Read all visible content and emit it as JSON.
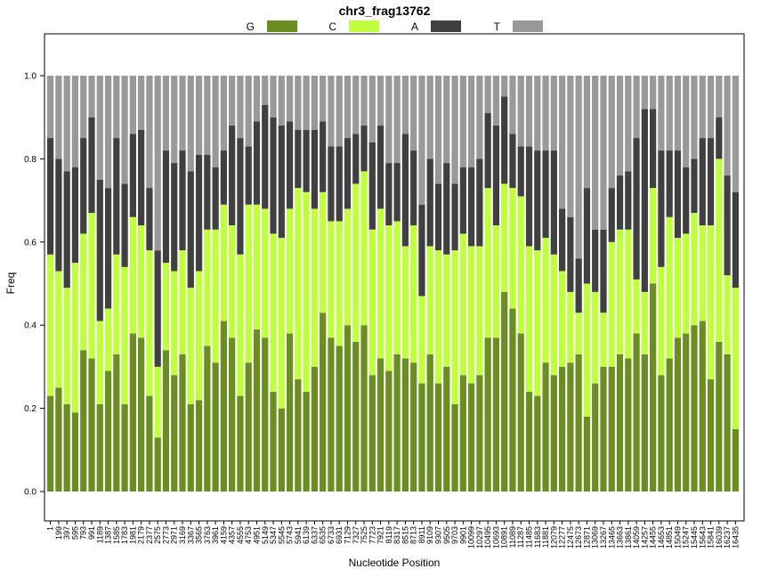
{
  "chart_data": {
    "type": "bar",
    "stacked": true,
    "title": "chr3_frag13762",
    "xlabel": "Nucleotide Position",
    "ylabel": "Freq",
    "ylim": [
      0,
      1
    ],
    "yticks": [
      "0.0",
      "0.2",
      "0.4",
      "0.6",
      "0.8",
      "1.0"
    ],
    "legend_position": "top",
    "grid": false,
    "categories": [
      "1",
      "199",
      "397",
      "595",
      "793",
      "991",
      "1189",
      "1387",
      "1585",
      "1783",
      "1981",
      "2179",
      "2377",
      "2575",
      "2773",
      "2971",
      "3169",
      "3367",
      "3565",
      "3763",
      "3961",
      "4159",
      "4357",
      "4555",
      "4753",
      "4951",
      "5149",
      "5347",
      "5545",
      "5743",
      "5941",
      "6139",
      "6337",
      "6535",
      "6733",
      "6931",
      "7129",
      "7327",
      "7525",
      "7723",
      "7921",
      "8119",
      "8317",
      "8515",
      "8713",
      "8911",
      "9109",
      "9307",
      "9505",
      "9703",
      "9901",
      "10099",
      "10297",
      "10495",
      "10693",
      "10891",
      "11089",
      "11287",
      "11485",
      "11683",
      "11881",
      "12079",
      "12277",
      "12475",
      "12673",
      "12871",
      "13069",
      "13267",
      "13465",
      "13663",
      "13861",
      "14059",
      "14257",
      "14455",
      "14653",
      "14851",
      "15049",
      "15247",
      "15445",
      "15643",
      "15841",
      "16039",
      "16237",
      "16435"
    ],
    "series": [
      {
        "name": "G",
        "color": "#6b8e23",
        "values": [
          0.23,
          0.25,
          0.21,
          0.19,
          0.34,
          0.32,
          0.21,
          0.29,
          0.33,
          0.21,
          0.38,
          0.37,
          0.23,
          0.13,
          0.34,
          0.28,
          0.33,
          0.21,
          0.22,
          0.35,
          0.31,
          0.41,
          0.37,
          0.23,
          0.31,
          0.39,
          0.37,
          0.24,
          0.2,
          0.38,
          0.27,
          0.24,
          0.3,
          0.43,
          0.37,
          0.35,
          0.4,
          0.36,
          0.4,
          0.28,
          0.32,
          0.29,
          0.33,
          0.32,
          0.31,
          0.26,
          0.33,
          0.26,
          0.3,
          0.21,
          0.28,
          0.26,
          0.28,
          0.37,
          0.37,
          0.48,
          0.44,
          0.38,
          0.24,
          0.23,
          0.31,
          0.28,
          0.3,
          0.31,
          0.33,
          0.18,
          0.26,
          0.3,
          0.3,
          0.33,
          0.32,
          0.38,
          0.33,
          0.5,
          0.28,
          0.32,
          0.37,
          0.38,
          0.4,
          0.41,
          0.27,
          0.36,
          0.33,
          0.15
        ]
      },
      {
        "name": "C",
        "color": "#c0ff3e",
        "values": [
          0.34,
          0.28,
          0.28,
          0.36,
          0.28,
          0.35,
          0.2,
          0.15,
          0.24,
          0.33,
          0.28,
          0.27,
          0.35,
          0.17,
          0.21,
          0.25,
          0.25,
          0.28,
          0.31,
          0.28,
          0.32,
          0.28,
          0.27,
          0.34,
          0.38,
          0.3,
          0.31,
          0.38,
          0.41,
          0.3,
          0.46,
          0.48,
          0.38,
          0.29,
          0.28,
          0.3,
          0.28,
          0.38,
          0.37,
          0.35,
          0.36,
          0.35,
          0.32,
          0.27,
          0.33,
          0.21,
          0.26,
          0.32,
          0.27,
          0.37,
          0.34,
          0.33,
          0.31,
          0.36,
          0.27,
          0.26,
          0.29,
          0.33,
          0.35,
          0.35,
          0.3,
          0.29,
          0.23,
          0.17,
          0.1,
          0.32,
          0.22,
          0.13,
          0.3,
          0.3,
          0.31,
          0.13,
          0.15,
          0.23,
          0.26,
          0.34,
          0.24,
          0.24,
          0.27,
          0.23,
          0.37,
          0.44,
          0.19,
          0.34
        ]
      },
      {
        "name": "A",
        "color": "#404040",
        "values": [
          0.28,
          0.27,
          0.28,
          0.23,
          0.23,
          0.23,
          0.34,
          0.29,
          0.28,
          0.2,
          0.2,
          0.23,
          0.15,
          0.28,
          0.27,
          0.26,
          0.24,
          0.28,
          0.28,
          0.18,
          0.15,
          0.13,
          0.24,
          0.28,
          0.14,
          0.2,
          0.25,
          0.28,
          0.27,
          0.21,
          0.14,
          0.15,
          0.19,
          0.17,
          0.18,
          0.18,
          0.17,
          0.12,
          0.11,
          0.21,
          0.2,
          0.15,
          0.14,
          0.27,
          0.18,
          0.22,
          0.21,
          0.16,
          0.22,
          0.16,
          0.16,
          0.19,
          0.21,
          0.18,
          0.24,
          0.21,
          0.13,
          0.12,
          0.24,
          0.24,
          0.21,
          0.25,
          0.15,
          0.18,
          0.13,
          0.23,
          0.15,
          0.2,
          0.13,
          0.13,
          0.14,
          0.34,
          0.44,
          0.19,
          0.28,
          0.16,
          0.21,
          0.16,
          0.13,
          0.21,
          0.21,
          0.1,
          0.24,
          0.23
        ]
      },
      {
        "name": "T",
        "color": "#999999",
        "values": [
          0.15,
          0.2,
          0.23,
          0.22,
          0.15,
          0.1,
          0.25,
          0.27,
          0.15,
          0.26,
          0.14,
          0.13,
          0.27,
          0.42,
          0.18,
          0.21,
          0.18,
          0.23,
          0.19,
          0.19,
          0.22,
          0.18,
          0.12,
          0.15,
          0.17,
          0.11,
          0.07,
          0.1,
          0.12,
          0.11,
          0.13,
          0.13,
          0.13,
          0.11,
          0.17,
          0.17,
          0.15,
          0.14,
          0.12,
          0.16,
          0.12,
          0.21,
          0.21,
          0.14,
          0.18,
          0.31,
          0.2,
          0.26,
          0.21,
          0.26,
          0.22,
          0.22,
          0.2,
          0.09,
          0.12,
          0.05,
          0.14,
          0.17,
          0.17,
          0.18,
          0.18,
          0.18,
          0.32,
          0.34,
          0.44,
          0.27,
          0.37,
          0.37,
          0.27,
          0.24,
          0.23,
          0.15,
          0.08,
          0.08,
          0.18,
          0.18,
          0.18,
          0.22,
          0.2,
          0.15,
          0.15,
          0.1,
          0.24,
          0.28
        ]
      }
    ]
  }
}
